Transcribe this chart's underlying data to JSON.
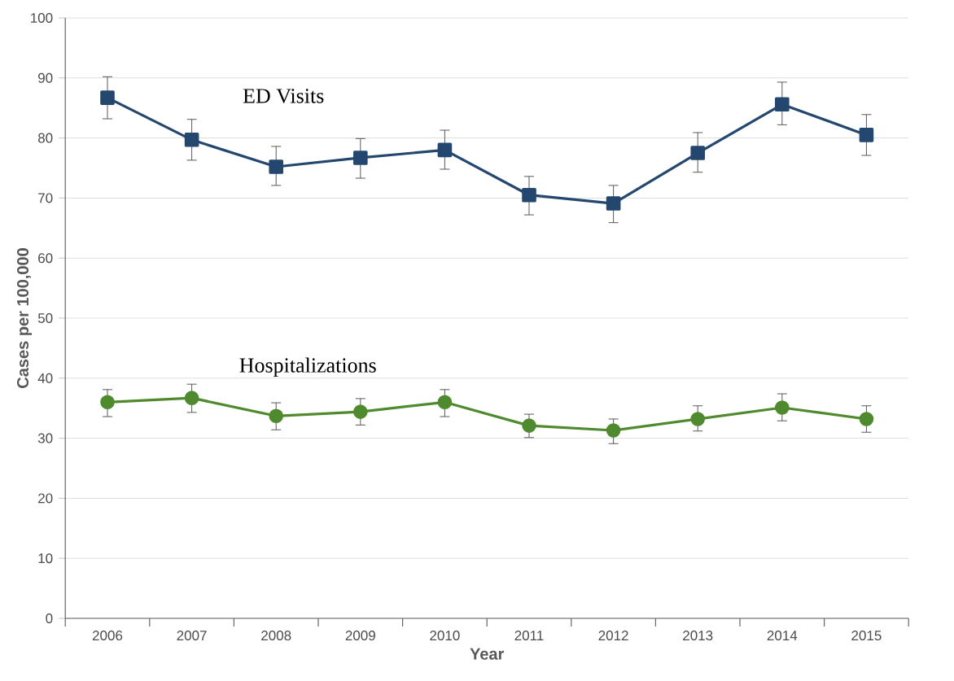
{
  "chart_data": {
    "type": "line",
    "xlabel": "Year",
    "ylabel": "Cases per 100,000",
    "categories": [
      "2006",
      "2007",
      "2008",
      "2009",
      "2010",
      "2011",
      "2012",
      "2013",
      "2014",
      "2015"
    ],
    "ylim": [
      0,
      100
    ],
    "yticks": [
      0,
      10,
      20,
      30,
      40,
      50,
      60,
      70,
      80,
      90,
      100
    ],
    "grid": "y",
    "line_style": "solid",
    "series": [
      {
        "name": "ED Visits",
        "color": "#23476f",
        "marker": "square",
        "values": [
          86.7,
          79.7,
          75.2,
          76.7,
          78.0,
          70.5,
          69.1,
          77.5,
          85.6,
          80.5
        ],
        "errors": [
          [
            83.2,
            90.2
          ],
          [
            76.3,
            83.1
          ],
          [
            72.1,
            78.6
          ],
          [
            73.3,
            79.9
          ],
          [
            74.8,
            81.3
          ],
          [
            67.2,
            73.6
          ],
          [
            65.9,
            72.1
          ],
          [
            74.3,
            80.9
          ],
          [
            82.2,
            89.3
          ],
          [
            77.1,
            83.9
          ]
        ]
      },
      {
        "name": "Hospitalizations",
        "color": "#4f8a2e",
        "marker": "circle",
        "values": [
          36.0,
          36.7,
          33.7,
          34.4,
          36.0,
          32.1,
          31.3,
          33.2,
          35.1,
          33.2
        ],
        "errors": [
          [
            33.6,
            38.1
          ],
          [
            34.3,
            39.0
          ],
          [
            31.4,
            35.9
          ],
          [
            32.2,
            36.6
          ],
          [
            33.6,
            38.1
          ],
          [
            30.1,
            34.0
          ],
          [
            29.1,
            33.2
          ],
          [
            31.2,
            35.4
          ],
          [
            32.9,
            37.4
          ],
          [
            31.0,
            35.4
          ]
        ]
      }
    ]
  }
}
